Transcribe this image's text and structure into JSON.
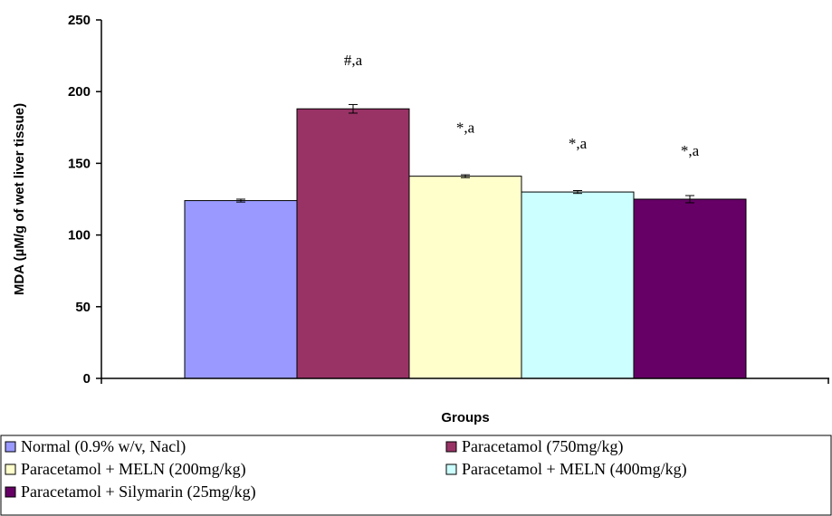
{
  "chart_data": {
    "type": "bar",
    "title": "",
    "xlabel": "Groups",
    "ylabel": "MDA (µM/g of wet liver tissue)",
    "ylim": [
      0,
      250
    ],
    "yticks": [
      0,
      50,
      100,
      150,
      200,
      250
    ],
    "grid": false,
    "legend_position": "bottom",
    "series": [
      {
        "name": "Normal (0.9% w/v, Nacl)",
        "value": 124,
        "error": 1,
        "annotation": "",
        "color": "#9999ff"
      },
      {
        "name": "Paracetamol (750mg/kg)",
        "value": 188,
        "error": 3,
        "annotation": "#,a",
        "color": "#993366"
      },
      {
        "name": "Paracetamol + MELN (200mg/kg)",
        "value": 141,
        "error": 1,
        "annotation": "*,a",
        "color": "#ffffcc"
      },
      {
        "name": "Paracetamol + MELN (400mg/kg)",
        "value": 130,
        "error": 1,
        "annotation": "*,a",
        "color": "#ccffff"
      },
      {
        "name": "Paracetamol + Silymarin (25mg/kg)",
        "value": 125,
        "error": 2.5,
        "annotation": "*,a",
        "color": "#660066"
      }
    ]
  }
}
